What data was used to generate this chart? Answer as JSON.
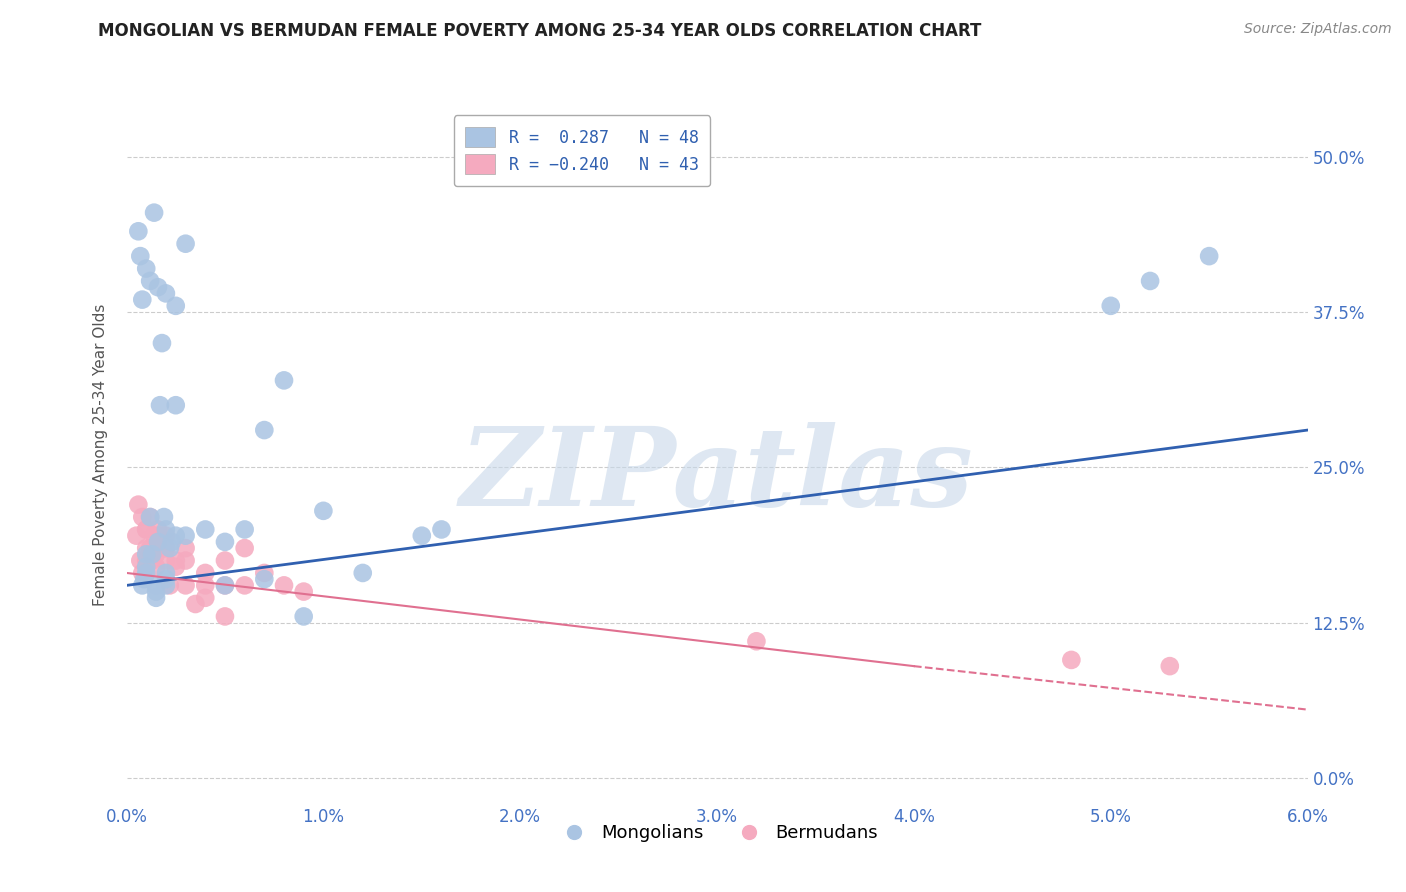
{
  "title": "MONGOLIAN VS BERMUDAN FEMALE POVERTY AMONG 25-34 YEAR OLDS CORRELATION CHART",
  "source": "Source: ZipAtlas.com",
  "ylabel": "Female Poverty Among 25-34 Year Olds",
  "xlim": [
    0.0,
    0.06
  ],
  "ylim": [
    -0.02,
    0.54
  ],
  "yticks": [
    0.0,
    0.125,
    0.25,
    0.375,
    0.5
  ],
  "ytick_labels": [
    "0.0%",
    "12.5%",
    "25.0%",
    "37.5%",
    "50.0%"
  ],
  "xticks": [
    0.0,
    0.01,
    0.02,
    0.03,
    0.04,
    0.05,
    0.06
  ],
  "xtick_labels": [
    "0.0%",
    "1.0%",
    "2.0%",
    "3.0%",
    "4.0%",
    "5.0%",
    "6.0%"
  ],
  "mongolian_R": 0.287,
  "mongolian_N": 48,
  "bermudan_R": -0.24,
  "bermudan_N": 43,
  "mongolian_color": "#aac4e2",
  "bermudan_color": "#f5aabf",
  "mongolian_line_color": "#3060b0",
  "bermudan_line_color": "#e07090",
  "legend_text_color": "#3060b0",
  "background_color": "#ffffff",
  "grid_color": "#cccccc",
  "watermark": "ZIPatlas",
  "watermark_color": "#c8d8ea",
  "mongolian_x": [
    0.0008,
    0.0009,
    0.001,
    0.001,
    0.001,
    0.0012,
    0.0013,
    0.0015,
    0.0015,
    0.0015,
    0.0016,
    0.0017,
    0.0018,
    0.0019,
    0.002,
    0.002,
    0.002,
    0.002,
    0.0022,
    0.0023,
    0.0025,
    0.0025,
    0.003,
    0.004,
    0.005,
    0.006,
    0.007,
    0.008,
    0.01,
    0.012,
    0.015,
    0.016,
    0.0006,
    0.0007,
    0.0008,
    0.001,
    0.0012,
    0.0014,
    0.0016,
    0.002,
    0.0025,
    0.003,
    0.005,
    0.007,
    0.009,
    0.05,
    0.052,
    0.055
  ],
  "mongolian_y": [
    0.155,
    0.16,
    0.165,
    0.17,
    0.18,
    0.21,
    0.18,
    0.155,
    0.15,
    0.145,
    0.19,
    0.3,
    0.35,
    0.21,
    0.155,
    0.16,
    0.165,
    0.2,
    0.185,
    0.19,
    0.195,
    0.3,
    0.195,
    0.2,
    0.19,
    0.2,
    0.28,
    0.32,
    0.215,
    0.165,
    0.195,
    0.2,
    0.44,
    0.42,
    0.385,
    0.41,
    0.4,
    0.455,
    0.395,
    0.39,
    0.38,
    0.43,
    0.155,
    0.16,
    0.13,
    0.38,
    0.4,
    0.42
  ],
  "bermudan_x": [
    0.0005,
    0.0007,
    0.0008,
    0.001,
    0.001,
    0.001,
    0.0012,
    0.0013,
    0.0015,
    0.0015,
    0.0016,
    0.0018,
    0.002,
    0.002,
    0.002,
    0.0022,
    0.0025,
    0.003,
    0.003,
    0.004,
    0.004,
    0.005,
    0.005,
    0.006,
    0.006,
    0.007,
    0.008,
    0.009,
    0.0006,
    0.0008,
    0.001,
    0.0012,
    0.0014,
    0.0016,
    0.002,
    0.0025,
    0.003,
    0.0035,
    0.004,
    0.005,
    0.032,
    0.048,
    0.053
  ],
  "bermudan_y": [
    0.195,
    0.175,
    0.165,
    0.2,
    0.175,
    0.185,
    0.185,
    0.175,
    0.18,
    0.17,
    0.2,
    0.19,
    0.175,
    0.185,
    0.195,
    0.155,
    0.17,
    0.175,
    0.155,
    0.145,
    0.165,
    0.175,
    0.155,
    0.185,
    0.155,
    0.165,
    0.155,
    0.15,
    0.22,
    0.21,
    0.2,
    0.21,
    0.195,
    0.195,
    0.185,
    0.175,
    0.185,
    0.14,
    0.155,
    0.13,
    0.11,
    0.095,
    0.09
  ]
}
